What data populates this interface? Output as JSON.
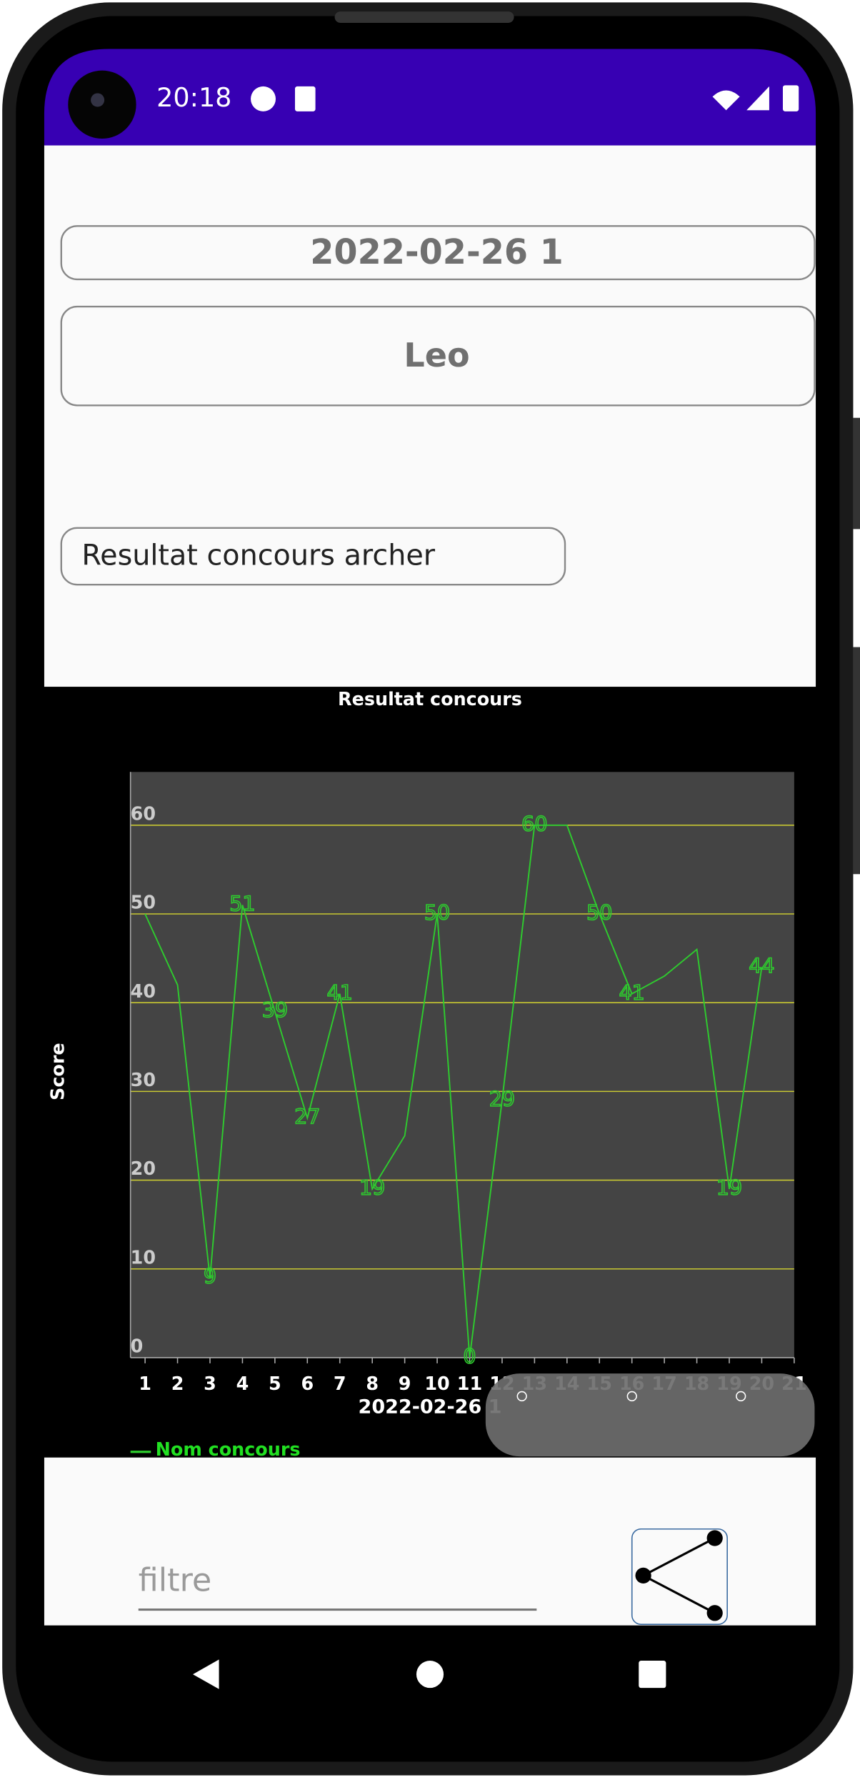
{
  "status_bar": {
    "time": "20:18"
  },
  "form": {
    "date_field": "2022-02-26 1",
    "name_field": "Leo",
    "title_field": "Resultat concours archer",
    "filter_hint": "filtre"
  },
  "chart_data": {
    "type": "line",
    "title": "Resultat concours",
    "x_label": "2022-02-26 1",
    "y_label": "Score",
    "x": [
      1,
      2,
      3,
      4,
      5,
      6,
      7,
      8,
      9,
      10,
      11,
      12,
      13,
      14,
      15,
      16,
      17,
      18,
      19,
      20
    ],
    "series": [
      {
        "name": "Nom concours",
        "color": "#2ecc2e",
        "values": [
          50,
          42,
          9,
          51,
          39,
          27,
          41,
          19,
          25,
          50,
          0,
          29,
          60,
          60,
          50,
          41,
          43,
          46,
          19,
          44
        ],
        "value_labels": [
          null,
          null,
          "9",
          "51",
          "39",
          "27",
          "41",
          "19",
          null,
          "50",
          "0",
          "29",
          "60",
          null,
          "50",
          "41",
          null,
          null,
          "19",
          "44"
        ]
      }
    ],
    "xlim": [
      0.55,
      21
    ],
    "ylim": [
      0,
      66
    ],
    "xticks": [
      1,
      2,
      3,
      4,
      5,
      6,
      7,
      8,
      9,
      10,
      11,
      12,
      13,
      14,
      15,
      16,
      17,
      18,
      19,
      20,
      21
    ],
    "yticks": [
      0,
      10,
      20,
      30,
      40,
      50,
      60
    ],
    "grid": true,
    "grid_color": "#c8c832"
  }
}
